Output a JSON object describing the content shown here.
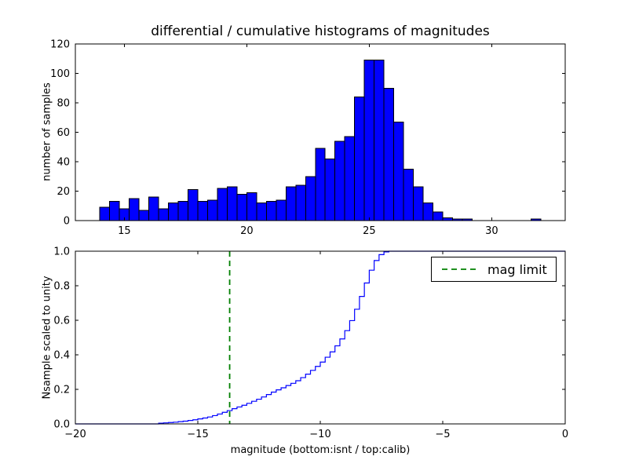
{
  "chart_data": [
    {
      "type": "bar",
      "title": "differential / cumulative histograms of magnitudes",
      "ylabel": "number of samples",
      "xlabel": "",
      "xlim": [
        13,
        33
      ],
      "ylim": [
        0,
        120
      ],
      "xticks": [
        15,
        20,
        25,
        30
      ],
      "xtick_labels": [
        "15",
        "20",
        "25",
        "30"
      ],
      "yticks": [
        0,
        20,
        40,
        60,
        80,
        100,
        120
      ],
      "ytick_labels": [
        "0",
        "20",
        "40",
        "60",
        "80",
        "100",
        "120"
      ],
      "grid": false,
      "bar_color": "#0000ff",
      "bar_edge_color": "#000000",
      "bin_width": 0.4,
      "bins_start": [
        14.0,
        14.4,
        14.8,
        15.2,
        15.6,
        16.0,
        16.4,
        16.8,
        17.2,
        17.6,
        18.0,
        18.4,
        18.8,
        19.2,
        19.6,
        20.0,
        20.4,
        20.8,
        21.2,
        21.6,
        22.0,
        22.4,
        22.8,
        23.2,
        23.6,
        24.0,
        24.4,
        24.8,
        25.2,
        25.6,
        26.0,
        26.4,
        26.8,
        27.2,
        27.6,
        28.0,
        28.4,
        28.8,
        31.6
      ],
      "values": [
        9,
        13,
        8,
        15,
        7,
        16,
        8,
        12,
        13,
        21,
        13,
        14,
        22,
        23,
        18,
        19,
        12,
        13,
        14,
        23,
        24,
        30,
        49,
        42,
        54,
        57,
        84,
        109,
        109,
        90,
        67,
        35,
        23,
        12,
        6,
        2,
        1,
        1,
        1
      ]
    },
    {
      "type": "line",
      "title": "",
      "ylabel": "Nsample scaled to unity",
      "xlabel": "magnitude (bottom:isnt / top:calib)",
      "xlim": [
        -20,
        0
      ],
      "ylim": [
        0,
        1
      ],
      "xticks": [
        -20,
        -15,
        -10,
        -5,
        0
      ],
      "xtick_labels": [
        "−20",
        "−15",
        "−10",
        "−5",
        "0"
      ],
      "yticks": [
        0,
        0.2,
        0.4,
        0.6,
        0.8,
        1.0
      ],
      "ytick_labels": [
        "0.0",
        "0.2",
        "0.4",
        "0.6",
        "0.8",
        "1.0"
      ],
      "grid": false,
      "line_color": "#0000ff",
      "step_points": [
        [
          -20,
          0
        ],
        [
          -16.8,
          0
        ],
        [
          -16.6,
          0.004
        ],
        [
          -16.4,
          0.006
        ],
        [
          -16.2,
          0.008
        ],
        [
          -16.0,
          0.01
        ],
        [
          -15.8,
          0.013
        ],
        [
          -15.6,
          0.016
        ],
        [
          -15.4,
          0.02
        ],
        [
          -15.2,
          0.024
        ],
        [
          -15.0,
          0.029
        ],
        [
          -14.8,
          0.034
        ],
        [
          -14.6,
          0.04
        ],
        [
          -14.4,
          0.048
        ],
        [
          -14.2,
          0.057
        ],
        [
          -14.0,
          0.067
        ],
        [
          -13.8,
          0.077
        ],
        [
          -13.6,
          0.088
        ],
        [
          -13.4,
          0.098
        ],
        [
          -13.2,
          0.108
        ],
        [
          -13.0,
          0.119
        ],
        [
          -12.8,
          0.131
        ],
        [
          -12.6,
          0.143
        ],
        [
          -12.4,
          0.156
        ],
        [
          -12.2,
          0.17
        ],
        [
          -12.0,
          0.184
        ],
        [
          -11.8,
          0.197
        ],
        [
          -11.6,
          0.209
        ],
        [
          -11.4,
          0.222
        ],
        [
          -11.2,
          0.235
        ],
        [
          -11.0,
          0.25
        ],
        [
          -10.8,
          0.268
        ],
        [
          -10.6,
          0.288
        ],
        [
          -10.4,
          0.31
        ],
        [
          -10.2,
          0.333
        ],
        [
          -10.0,
          0.358
        ],
        [
          -9.8,
          0.386
        ],
        [
          -9.6,
          0.417
        ],
        [
          -9.4,
          0.452
        ],
        [
          -9.2,
          0.492
        ],
        [
          -9.0,
          0.54
        ],
        [
          -8.8,
          0.598
        ],
        [
          -8.6,
          0.664
        ],
        [
          -8.4,
          0.738
        ],
        [
          -8.2,
          0.816
        ],
        [
          -8.0,
          0.89
        ],
        [
          -7.8,
          0.946
        ],
        [
          -7.6,
          0.98
        ],
        [
          -7.4,
          0.996
        ],
        [
          -7.2,
          1.0
        ],
        [
          0,
          1.0
        ]
      ],
      "vline": {
        "x": -13.7,
        "color": "#008000",
        "style": "dashed",
        "label": "mag limit"
      },
      "legend": {
        "label": "mag limit",
        "position": "upper right"
      }
    }
  ],
  "colors": {
    "axes": "#000000",
    "background": "#ffffff",
    "bar_fill": "#0000ff",
    "cumulative_line": "#0000ff",
    "mag_limit_green": "#008000"
  }
}
